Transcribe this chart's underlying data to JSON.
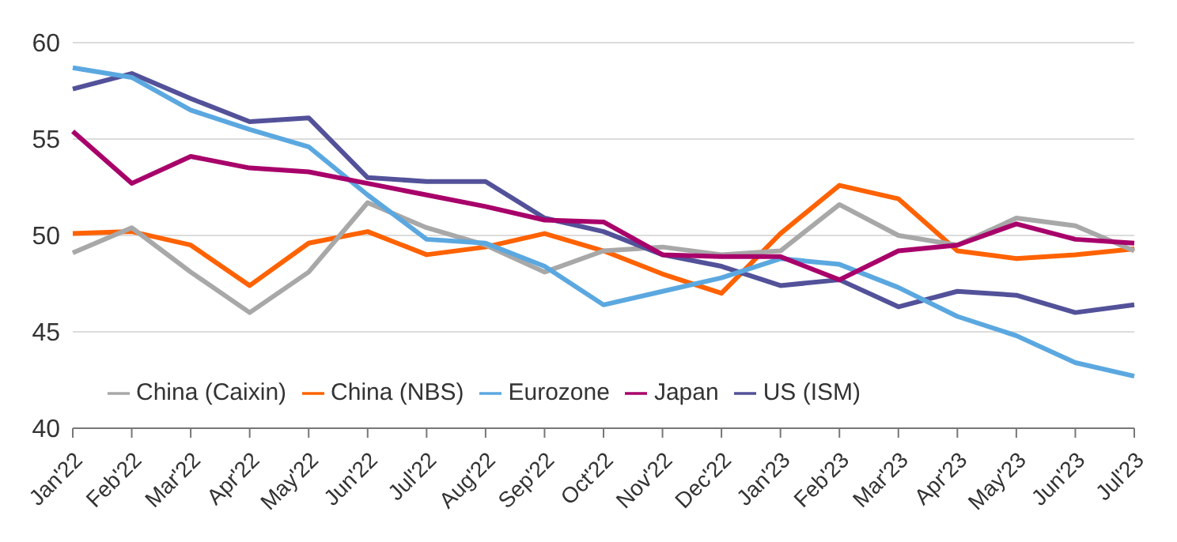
{
  "chart_data": {
    "type": "line",
    "categories": [
      "Jan'22",
      "Feb'22",
      "Mar'22",
      "Apr'22",
      "May'22",
      "Jun'22",
      "Jul'22",
      "Aug'22",
      "Sep'22",
      "Oct'22",
      "Nov'22",
      "Dec'22",
      "Jan'23",
      "Feb'23",
      "Mar'23",
      "Apr'23",
      "May'23",
      "Jun'23",
      "Jul'23"
    ],
    "series": [
      {
        "name": "China (NBS)",
        "color": "#ff6200",
        "values": [
          50.1,
          50.2,
          49.5,
          47.4,
          49.6,
          50.2,
          49.0,
          49.4,
          50.1,
          49.2,
          48.0,
          47.0,
          50.1,
          52.6,
          51.9,
          49.2,
          48.8,
          49.0,
          49.3
        ]
      },
      {
        "name": "China (Caixin)",
        "color": "#a8a8a8",
        "values": [
          49.1,
          50.4,
          48.1,
          46.0,
          48.1,
          51.7,
          50.4,
          49.5,
          48.1,
          49.2,
          49.4,
          49.0,
          49.2,
          51.6,
          50.0,
          49.5,
          50.9,
          50.5,
          49.2
        ]
      },
      {
        "name": "US (ISM)",
        "color": "#525199",
        "values": [
          57.6,
          58.4,
          57.1,
          55.9,
          56.1,
          53.0,
          52.8,
          52.8,
          50.9,
          50.2,
          49.0,
          48.4,
          47.4,
          47.7,
          46.3,
          47.1,
          46.9,
          46.0,
          46.4
        ]
      },
      {
        "name": "Eurozone",
        "color": "#5ba8e0",
        "values": [
          58.7,
          58.2,
          56.5,
          55.5,
          54.6,
          52.1,
          49.8,
          49.6,
          48.4,
          46.4,
          47.1,
          47.8,
          48.8,
          48.5,
          47.3,
          45.8,
          44.8,
          43.4,
          42.7
        ]
      },
      {
        "name": "Japan",
        "color": "#a8006a",
        "values": [
          55.4,
          52.7,
          54.1,
          53.5,
          53.3,
          52.7,
          52.1,
          51.5,
          50.8,
          50.7,
          49.0,
          48.9,
          48.9,
          47.7,
          49.2,
          49.5,
          50.6,
          49.8,
          49.6
        ]
      }
    ],
    "ylim": [
      40,
      60
    ],
    "yticks": [
      40,
      45,
      50,
      55,
      60
    ],
    "grid": "y",
    "legend": "bottom",
    "marker": "none",
    "line_style": "solid"
  }
}
